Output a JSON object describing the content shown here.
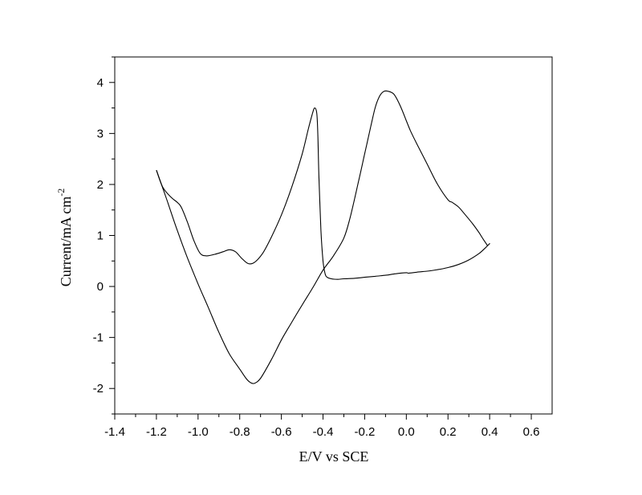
{
  "chart_data": {
    "type": "line",
    "title": "",
    "xlabel": "E/V vs SCE",
    "ylabel": "Current/mA cm",
    "ylabel_superscript": "-2",
    "xlim": [
      -1.4,
      0.7
    ],
    "ylim": [
      -2.5,
      4.5
    ],
    "xticks": [
      -1.4,
      -1.2,
      -1.0,
      -0.8,
      -0.6,
      -0.4,
      -0.2,
      0.0,
      0.2,
      0.4,
      0.6
    ],
    "xtick_labels": [
      "-1.4",
      "-1.2",
      "-1.0",
      "-0.8",
      "-0.6",
      "-0.4",
      "-0.2",
      "0.0",
      "0.2",
      "0.4",
      "0.6"
    ],
    "yticks": [
      -2,
      -1,
      0,
      1,
      2,
      3,
      4
    ],
    "ytick_labels": [
      "-2",
      "-1",
      "0",
      "1",
      "2",
      "3",
      "4"
    ],
    "grid": false,
    "series": [
      {
        "x": [
          -1.2,
          -1.17,
          -1.13,
          -1.1,
          -1.08,
          -1.05,
          -1.02,
          -0.99,
          -0.96,
          -0.92,
          -0.88,
          -0.85,
          -0.82,
          -0.79,
          -0.76,
          -0.73,
          -0.69,
          -0.65,
          -0.6,
          -0.55,
          -0.5,
          -0.47,
          -0.45,
          -0.44,
          -0.43,
          -0.425,
          -0.42,
          -0.41,
          -0.4,
          -0.39,
          -0.38,
          -0.36,
          -0.33,
          -0.3,
          -0.25,
          -0.2,
          -0.15,
          -0.1,
          -0.05,
          0.0,
          0.01,
          0.05,
          0.1,
          0.15,
          0.2,
          0.25,
          0.3,
          0.35,
          0.38,
          0.4,
          0.39
        ],
        "y": [
          2.28,
          1.95,
          1.75,
          1.65,
          1.55,
          1.25,
          0.9,
          0.65,
          0.6,
          0.63,
          0.68,
          0.72,
          0.68,
          0.55,
          0.45,
          0.47,
          0.65,
          0.95,
          1.4,
          1.95,
          2.6,
          3.1,
          3.4,
          3.5,
          3.4,
          3.0,
          2.2,
          1.1,
          0.5,
          0.25,
          0.18,
          0.15,
          0.14,
          0.15,
          0.16,
          0.18,
          0.2,
          0.22,
          0.25,
          0.27,
          0.26,
          0.28,
          0.3,
          0.33,
          0.37,
          0.43,
          0.52,
          0.65,
          0.76,
          0.84,
          0.8
        ]
      },
      {
        "x": [
          0.39,
          0.37,
          0.35,
          0.32,
          0.28,
          0.25,
          0.22,
          0.2,
          0.15,
          0.1,
          0.05,
          0.02,
          0.0,
          -0.03,
          -0.06,
          -0.09,
          -0.11,
          -0.13,
          -0.15,
          -0.17,
          -0.2,
          -0.23,
          -0.27,
          -0.3,
          -0.35,
          -0.4,
          -0.45,
          -0.5,
          -0.55,
          -0.6,
          -0.65,
          -0.7,
          -0.73,
          -0.75,
          -0.77,
          -0.8,
          -0.85,
          -0.9,
          -0.95,
          -1.0,
          -1.05,
          -1.1,
          -1.15,
          -1.2
        ],
        "y": [
          0.8,
          0.92,
          1.05,
          1.22,
          1.42,
          1.56,
          1.65,
          1.7,
          2.0,
          2.4,
          2.8,
          3.05,
          3.25,
          3.55,
          3.77,
          3.83,
          3.82,
          3.72,
          3.5,
          3.15,
          2.6,
          2.05,
          1.35,
          0.95,
          0.6,
          0.32,
          -0.03,
          -0.36,
          -0.7,
          -1.05,
          -1.45,
          -1.8,
          -1.9,
          -1.88,
          -1.8,
          -1.62,
          -1.32,
          -0.9,
          -0.42,
          0.05,
          0.55,
          1.1,
          1.7,
          2.28
        ]
      }
    ]
  }
}
